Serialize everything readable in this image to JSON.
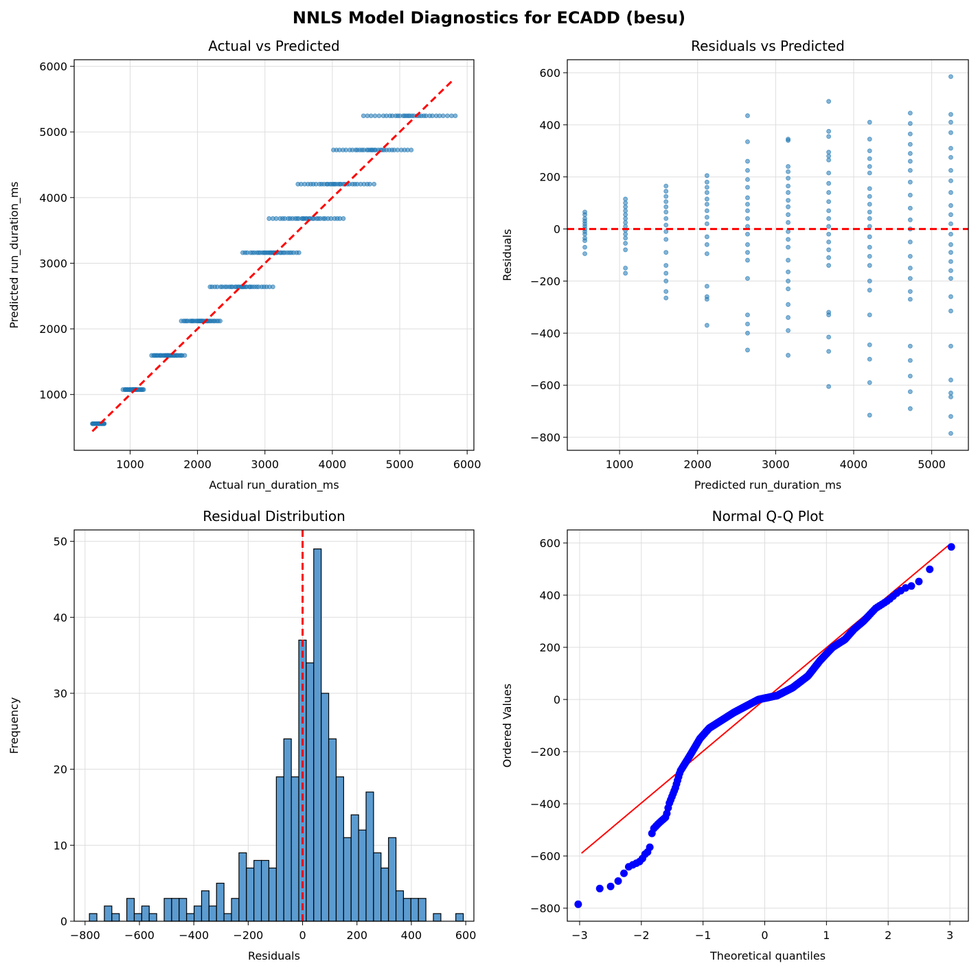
{
  "figure_title": "NNLS Model Diagnostics for ECADD (besu)",
  "colors": {
    "scatter": "#1f77b4",
    "reference": "#ff0000",
    "qq_points": "#0000ff",
    "hist_fill": "#5b9bd0",
    "hist_edge": "#000000",
    "grid": "#dddddd"
  },
  "chart_data": [
    {
      "id": "actual-vs-predicted",
      "type": "scatter",
      "title": "Actual vs Predicted",
      "xlabel": "Actual run_duration_ms",
      "ylabel": "Predicted run_duration_ms",
      "xlim": [
        170,
        6100
      ],
      "ylim": [
        150,
        6100
      ],
      "xticks": [
        1000,
        2000,
        3000,
        4000,
        5000,
        6000
      ],
      "yticks": [
        1000,
        2000,
        3000,
        4000,
        5000,
        6000
      ],
      "grid": true,
      "reference_line": [
        [
          440,
          440
        ],
        [
          5800,
          5800
        ]
      ],
      "levels": [
        {
          "predicted": 555,
          "actual_min": 440,
          "actual_max": 620
        },
        {
          "predicted": 1075,
          "actual_min": 900,
          "actual_max": 1200
        },
        {
          "predicted": 1595,
          "actual_min": 1320,
          "actual_max": 1800
        },
        {
          "predicted": 2120,
          "actual_min": 1760,
          "actual_max": 2340
        },
        {
          "predicted": 2640,
          "actual_min": 2180,
          "actual_max": 3110
        },
        {
          "predicted": 3160,
          "actual_min": 2670,
          "actual_max": 3500
        },
        {
          "predicted": 3680,
          "actual_min": 3070,
          "actual_max": 4170
        },
        {
          "predicted": 4205,
          "actual_min": 3490,
          "actual_max": 4610
        },
        {
          "predicted": 4725,
          "actual_min": 4010,
          "actual_max": 5170
        },
        {
          "predicted": 5245,
          "actual_min": 4460,
          "actual_max": 5830
        }
      ]
    },
    {
      "id": "residuals-vs-predicted",
      "type": "scatter",
      "title": "Residuals vs Predicted",
      "xlabel": "Predicted run_duration_ms",
      "ylabel": "Residuals",
      "xlim": [
        330,
        5470
      ],
      "ylim": [
        -850,
        650
      ],
      "xticks": [
        1000,
        2000,
        3000,
        4000,
        5000
      ],
      "yticks": [
        -800,
        -600,
        -400,
        -200,
        0,
        200,
        400,
        600
      ],
      "grid": true,
      "zero_line": 0,
      "columns": [
        {
          "x": 555,
          "residuals": [
            65,
            55,
            40,
            30,
            20,
            10,
            0,
            -10,
            -20,
            -35,
            -45,
            -70,
            -95
          ]
        },
        {
          "x": 1075,
          "residuals": [
            115,
            100,
            85,
            70,
            55,
            40,
            25,
            10,
            -5,
            -20,
            -35,
            -55,
            -80,
            -150,
            -170
          ]
        },
        {
          "x": 1595,
          "residuals": [
            165,
            145,
            125,
            105,
            85,
            65,
            40,
            15,
            -10,
            -40,
            -90,
            -140,
            -170,
            -200,
            -240,
            -265
          ]
        },
        {
          "x": 2120,
          "residuals": [
            205,
            180,
            160,
            140,
            115,
            95,
            70,
            45,
            20,
            -30,
            -60,
            -95,
            -220,
            -260,
            -270,
            -370
          ]
        },
        {
          "x": 2640,
          "residuals": [
            435,
            335,
            260,
            225,
            190,
            160,
            120,
            95,
            70,
            40,
            10,
            -20,
            -60,
            -90,
            -120,
            -190,
            -330,
            -365,
            -400,
            -465
          ]
        },
        {
          "x": 3160,
          "residuals": [
            345,
            340,
            240,
            220,
            195,
            165,
            140,
            110,
            85,
            55,
            25,
            -10,
            -40,
            -70,
            -120,
            -165,
            -200,
            -230,
            -290,
            -340,
            -390,
            -485
          ]
        },
        {
          "x": 3680,
          "residuals": [
            490,
            375,
            355,
            295,
            280,
            265,
            215,
            175,
            140,
            105,
            70,
            40,
            10,
            -20,
            -50,
            -80,
            -110,
            -140,
            -320,
            -330,
            -415,
            -470,
            -605
          ]
        },
        {
          "x": 4205,
          "residuals": [
            410,
            345,
            300,
            270,
            240,
            215,
            155,
            125,
            95,
            65,
            40,
            10,
            -30,
            -70,
            -105,
            -140,
            -200,
            -235,
            -330,
            -445,
            -500,
            -590,
            -715
          ]
        },
        {
          "x": 4725,
          "residuals": [
            445,
            405,
            365,
            325,
            290,
            260,
            225,
            180,
            130,
            80,
            35,
            0,
            -50,
            -105,
            -150,
            -190,
            -240,
            -270,
            -450,
            -505,
            -565,
            -625,
            -690
          ]
        },
        {
          "x": 5245,
          "residuals": [
            585,
            440,
            410,
            370,
            310,
            275,
            225,
            185,
            140,
            90,
            55,
            20,
            -20,
            -60,
            -90,
            -125,
            -160,
            -190,
            -260,
            -315,
            -450,
            -580,
            -630,
            -645,
            -720,
            -785
          ]
        }
      ]
    },
    {
      "id": "residual-distribution",
      "type": "bar",
      "title": "Residual Distribution",
      "xlabel": "Residuals",
      "ylabel": "Frequency",
      "xlim": [
        -840,
        630
      ],
      "ylim": [
        0,
        51.5
      ],
      "xticks": [
        -800,
        -600,
        -400,
        -200,
        0,
        200,
        400,
        600
      ],
      "yticks": [
        0,
        10,
        20,
        30,
        40,
        50
      ],
      "grid": true,
      "bin_start": -784,
      "bin_width": 27.5,
      "counts": [
        1,
        0,
        2,
        1,
        0,
        3,
        1,
        2,
        1,
        0,
        3,
        3,
        3,
        1,
        2,
        4,
        2,
        5,
        1,
        3,
        9,
        7,
        8,
        8,
        7,
        19,
        24,
        19,
        37,
        34,
        49,
        30,
        24,
        19,
        11,
        14,
        12,
        17,
        9,
        7,
        11,
        4,
        3,
        3,
        3,
        0,
        1,
        0,
        0,
        1
      ],
      "vline": 0
    },
    {
      "id": "normal-qq-plot",
      "type": "scatter",
      "title": "Normal Q-Q Plot",
      "xlabel": "Theoretical quantiles",
      "ylabel": "Ordered Values",
      "xlim": [
        -3.2,
        3.3
      ],
      "ylim": [
        -850,
        650
      ],
      "xticks": [
        -3,
        -2,
        -1,
        0,
        1,
        2,
        3
      ],
      "yticks": [
        -800,
        -600,
        -400,
        -200,
        0,
        200,
        400,
        600
      ],
      "grid": true,
      "n": 400,
      "fit_line": {
        "slope": 198.5,
        "intercept": 0,
        "x_range": [
          -2.97,
          2.97
        ]
      },
      "sample_quantiles": [
        [
          -2.97,
          -785
        ],
        [
          -2.65,
          -720
        ],
        [
          -2.5,
          -717
        ],
        [
          -2.37,
          -695
        ],
        [
          -2.2,
          -640
        ],
        [
          -2.1,
          -630
        ],
        [
          -2.0,
          -618
        ],
        [
          -1.95,
          -595
        ],
        [
          -1.9,
          -585
        ],
        [
          -1.86,
          -565
        ],
        [
          -1.82,
          -500
        ],
        [
          -1.72,
          -475
        ],
        [
          -1.6,
          -450
        ],
        [
          -1.55,
          -400
        ],
        [
          -1.45,
          -340
        ],
        [
          -1.37,
          -275
        ],
        [
          -1.2,
          -210
        ],
        [
          -1.05,
          -150
        ],
        [
          -0.9,
          -110
        ],
        [
          -0.7,
          -80
        ],
        [
          -0.5,
          -50
        ],
        [
          -0.3,
          -25
        ],
        [
          -0.1,
          0
        ],
        [
          0.2,
          15
        ],
        [
          0.45,
          45
        ],
        [
          0.7,
          90
        ],
        [
          0.9,
          150
        ],
        [
          1.1,
          200
        ],
        [
          1.3,
          230
        ],
        [
          1.45,
          270
        ],
        [
          1.6,
          300
        ],
        [
          1.8,
          350
        ],
        [
          2.0,
          380
        ],
        [
          2.15,
          410
        ],
        [
          2.3,
          430
        ],
        [
          2.45,
          440
        ],
        [
          2.65,
          492
        ],
        [
          2.97,
          585
        ]
      ]
    }
  ]
}
